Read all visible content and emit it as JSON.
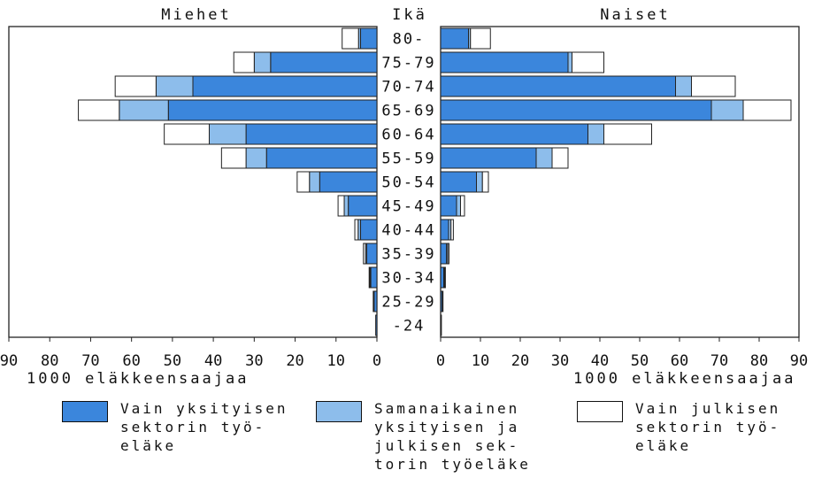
{
  "chart_data": {
    "type": "bar",
    "orientation": "horizontal-population-pyramid",
    "center_label": "Ikä",
    "categories": [
      "80-",
      "75-79",
      "70-74",
      "65-69",
      "60-64",
      "55-59",
      "50-54",
      "45-49",
      "40-44",
      "35-39",
      "30-34",
      "25-29",
      "-24"
    ],
    "panels": [
      {
        "title": "Miehet",
        "side": "left",
        "xlabel": "1000 eläkkeensaajaa",
        "xlim": [
          0,
          90
        ],
        "ticks": [
          "90",
          "80",
          "70",
          "60",
          "50",
          "40",
          "30",
          "20",
          "10",
          "0"
        ],
        "series": [
          {
            "name": "Vain yksityisen sektorin työeläke",
            "values": [
              4,
              26,
              45,
              51,
              32,
              27,
              14,
              7,
              4,
              2.5,
              1.5,
              0.7,
              0.3
            ]
          },
          {
            "name": "Samanaikainen yksityisen ja julkisen sektorin työeläke",
            "values": [
              0.5,
              4,
              9,
              12,
              9,
              5,
              2.5,
              1,
              0.6,
              0.3,
              0.2,
              0.1,
              0
            ]
          },
          {
            "name": "Vain julkisen sektorin työeläke",
            "values": [
              4,
              5,
              10,
              10,
              11,
              6,
              3,
              1.5,
              0.8,
              0.5,
              0.2,
              0.1,
              0
            ]
          }
        ]
      },
      {
        "title": "Naiset",
        "side": "right",
        "xlabel": "1000 eläkkeensaajaa",
        "xlim": [
          0,
          90
        ],
        "ticks": [
          "0",
          "10",
          "20",
          "30",
          "40",
          "50",
          "60",
          "70",
          "80",
          "90"
        ],
        "series": [
          {
            "name": "Vain yksityisen sektorin työeläke",
            "values": [
              7,
              32,
              59,
              68,
              37,
              24,
              9,
              4,
              2,
              1.5,
              0.8,
              0.4,
              0.2
            ]
          },
          {
            "name": "Samanaikainen yksityisen ja julkisen sektorin työeläke",
            "values": [
              0.5,
              1,
              4,
              8,
              4,
              4,
              1.5,
              1,
              0.6,
              0.3,
              0.2,
              0.1,
              0
            ]
          },
          {
            "name": "Vain julkisen sektorin työeläke",
            "values": [
              5,
              8,
              11,
              12,
              12,
              4,
              1.5,
              1,
              0.6,
              0.3,
              0.2,
              0.1,
              0
            ]
          }
        ]
      }
    ],
    "legend": [
      {
        "label": "Vain yksityisen\nsektorin työ-\neläke",
        "color": "#3b86dc"
      },
      {
        "label": "Samanaikainen\nyksityisen ja\njulkisen sek-\ntorin työeläke",
        "color": "#8dbdeb"
      },
      {
        "label": "Vain julkisen\nsektorin työ-\neläke",
        "color": "#ffffff"
      }
    ],
    "colors": [
      "#3b86dc",
      "#8dbdeb",
      "#ffffff"
    ],
    "grid": false,
    "legend_position": "bottom"
  }
}
